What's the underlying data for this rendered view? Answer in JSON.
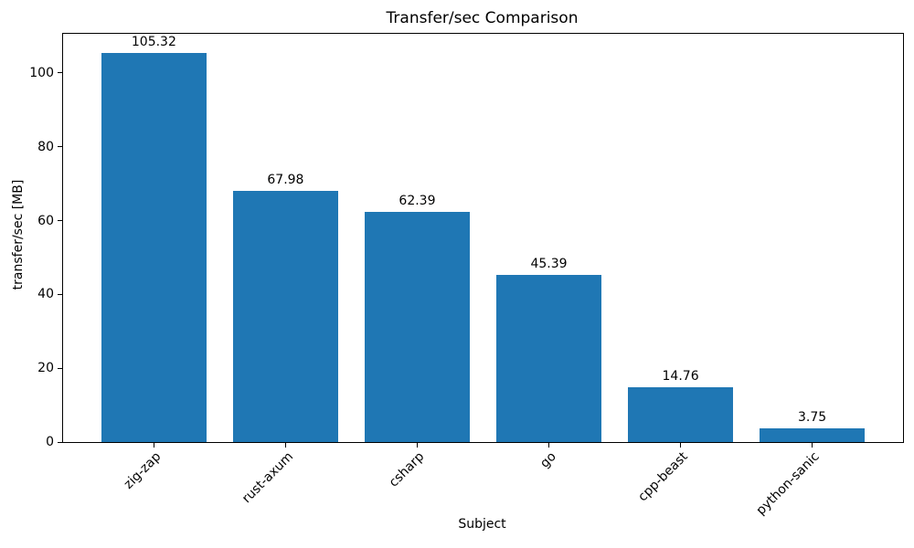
{
  "chart_data": {
    "type": "bar",
    "title": "Transfer/sec Comparison",
    "xlabel": "Subject",
    "ylabel": "transfer/sec [MB]",
    "categories": [
      "zig-zap",
      "rust-axum",
      "csharp",
      "go",
      "cpp-beast",
      "python-sanic"
    ],
    "values": [
      105.32,
      67.98,
      62.39,
      45.39,
      14.76,
      3.75
    ],
    "bar_labels": [
      "105.32",
      "67.98",
      "62.39",
      "45.39",
      "14.76",
      "3.75"
    ],
    "yticks": [
      0,
      20,
      40,
      60,
      80,
      100
    ],
    "ylim": [
      0,
      110.6
    ],
    "bar_color": "#1f77b4",
    "bar_width_fraction": 0.8,
    "grid": false,
    "legend_position": "none"
  }
}
